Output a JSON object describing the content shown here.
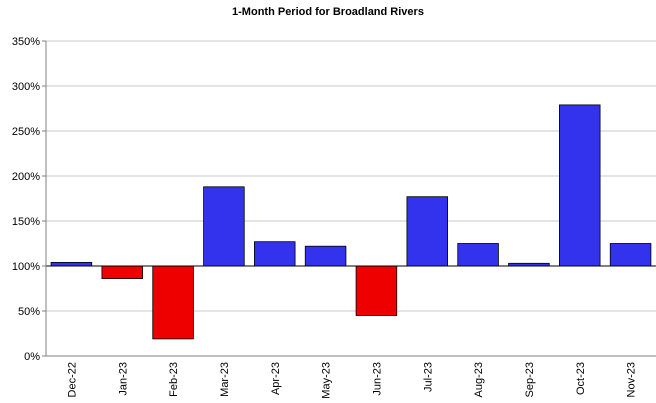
{
  "chart_data": {
    "type": "bar",
    "title": "1-Month Period for Broadland Rivers",
    "xlabel": "",
    "ylabel": "",
    "unit": "%",
    "baseline": 100,
    "ylim": [
      0,
      350
    ],
    "yticks": [
      0,
      50,
      100,
      150,
      200,
      250,
      300,
      350
    ],
    "ytick_labels": [
      "0%",
      "50%",
      "100%",
      "150%",
      "200%",
      "250%",
      "300%",
      "350%"
    ],
    "categories": [
      "Dec-22",
      "Jan-23",
      "Feb-23",
      "Mar-23",
      "Apr-23",
      "May-23",
      "Jun-23",
      "Jul-23",
      "Aug-23",
      "Sep-23",
      "Oct-23",
      "Nov-23"
    ],
    "values": [
      104,
      86,
      19,
      188,
      127,
      122,
      45,
      177,
      125,
      103,
      279,
      125
    ],
    "colors": {
      "above": "#3333ee",
      "below": "#ee0000",
      "grid": "#c8c8c8",
      "axis": "#808080"
    },
    "grid": true,
    "legend": "none"
  }
}
